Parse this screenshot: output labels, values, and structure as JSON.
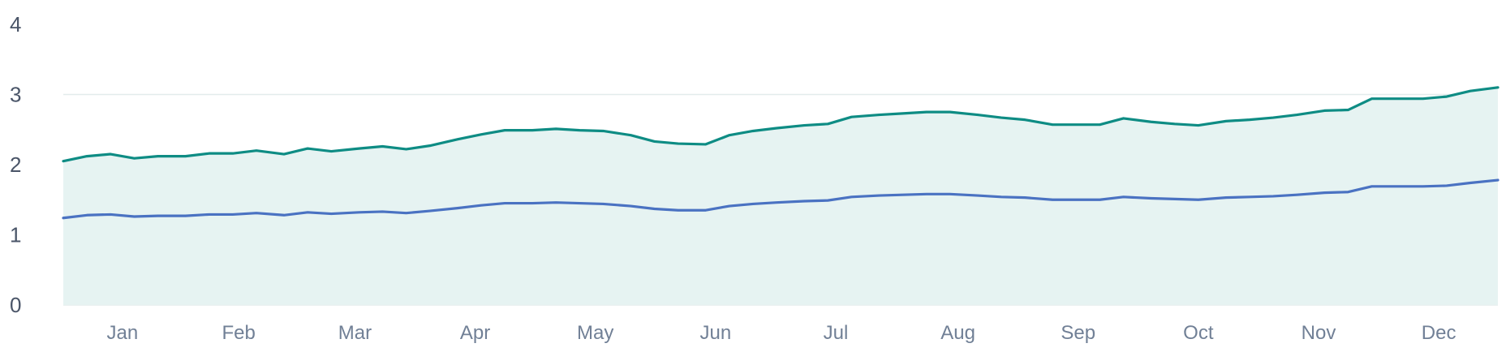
{
  "chart_data": {
    "type": "area",
    "ylim": [
      0,
      4
    ],
    "y_ticks": [
      0,
      1,
      2,
      3,
      4
    ],
    "x_ticks": [
      "Jan",
      "Feb",
      "Mar",
      "Apr",
      "May",
      "Jun",
      "Jul",
      "Aug",
      "Sep",
      "Oct",
      "Nov",
      "Dec"
    ],
    "grid": true,
    "colors": {
      "upper_line": "#0e8c84",
      "lower_line": "#4a72c2",
      "area_fill": "#e6f3f2",
      "grid": "#e3ecec",
      "axis_text": "#4a5568",
      "tick_text": "#718096"
    },
    "x": [
      1,
      7,
      13,
      19,
      25,
      32,
      38,
      44,
      50,
      57,
      63,
      69,
      76,
      82,
      88,
      94,
      101,
      107,
      113,
      120,
      126,
      132,
      138,
      145,
      151,
      157,
      164,
      170,
      176,
      182,
      189,
      195,
      201,
      208,
      214,
      220,
      226,
      233,
      239,
      245,
      252,
      258,
      264,
      270,
      277,
      283,
      289,
      296,
      302,
      308,
      314,
      321,
      327,
      333,
      340,
      346,
      352,
      358,
      365
    ],
    "series": [
      {
        "values": [
          2.05,
          2.12,
          2.15,
          2.09,
          2.12,
          2.12,
          2.16,
          2.16,
          2.2,
          2.15,
          2.23,
          2.19,
          2.23,
          2.26,
          2.22,
          2.27,
          2.36,
          2.43,
          2.49,
          2.49,
          2.51,
          2.49,
          2.48,
          2.42,
          2.33,
          2.3,
          2.29,
          2.42,
          2.48,
          2.52,
          2.56,
          2.58,
          2.68,
          2.71,
          2.73,
          2.75,
          2.75,
          2.71,
          2.67,
          2.64,
          2.57,
          2.57,
          2.57,
          2.66,
          2.61,
          2.58,
          2.56,
          2.62,
          2.64,
          2.67,
          2.71,
          2.77,
          2.78,
          2.94,
          2.94,
          2.94,
          2.97,
          3.05,
          3.1
        ]
      },
      {
        "values": [
          1.24,
          1.28,
          1.29,
          1.26,
          1.27,
          1.27,
          1.29,
          1.29,
          1.31,
          1.28,
          1.32,
          1.3,
          1.32,
          1.33,
          1.31,
          1.34,
          1.38,
          1.42,
          1.45,
          1.45,
          1.46,
          1.45,
          1.44,
          1.41,
          1.37,
          1.35,
          1.35,
          1.41,
          1.44,
          1.46,
          1.48,
          1.49,
          1.54,
          1.56,
          1.57,
          1.58,
          1.58,
          1.56,
          1.54,
          1.53,
          1.5,
          1.5,
          1.5,
          1.54,
          1.52,
          1.51,
          1.5,
          1.53,
          1.54,
          1.55,
          1.57,
          1.6,
          1.61,
          1.69,
          1.69,
          1.69,
          1.7,
          1.74,
          1.78
        ]
      }
    ]
  }
}
